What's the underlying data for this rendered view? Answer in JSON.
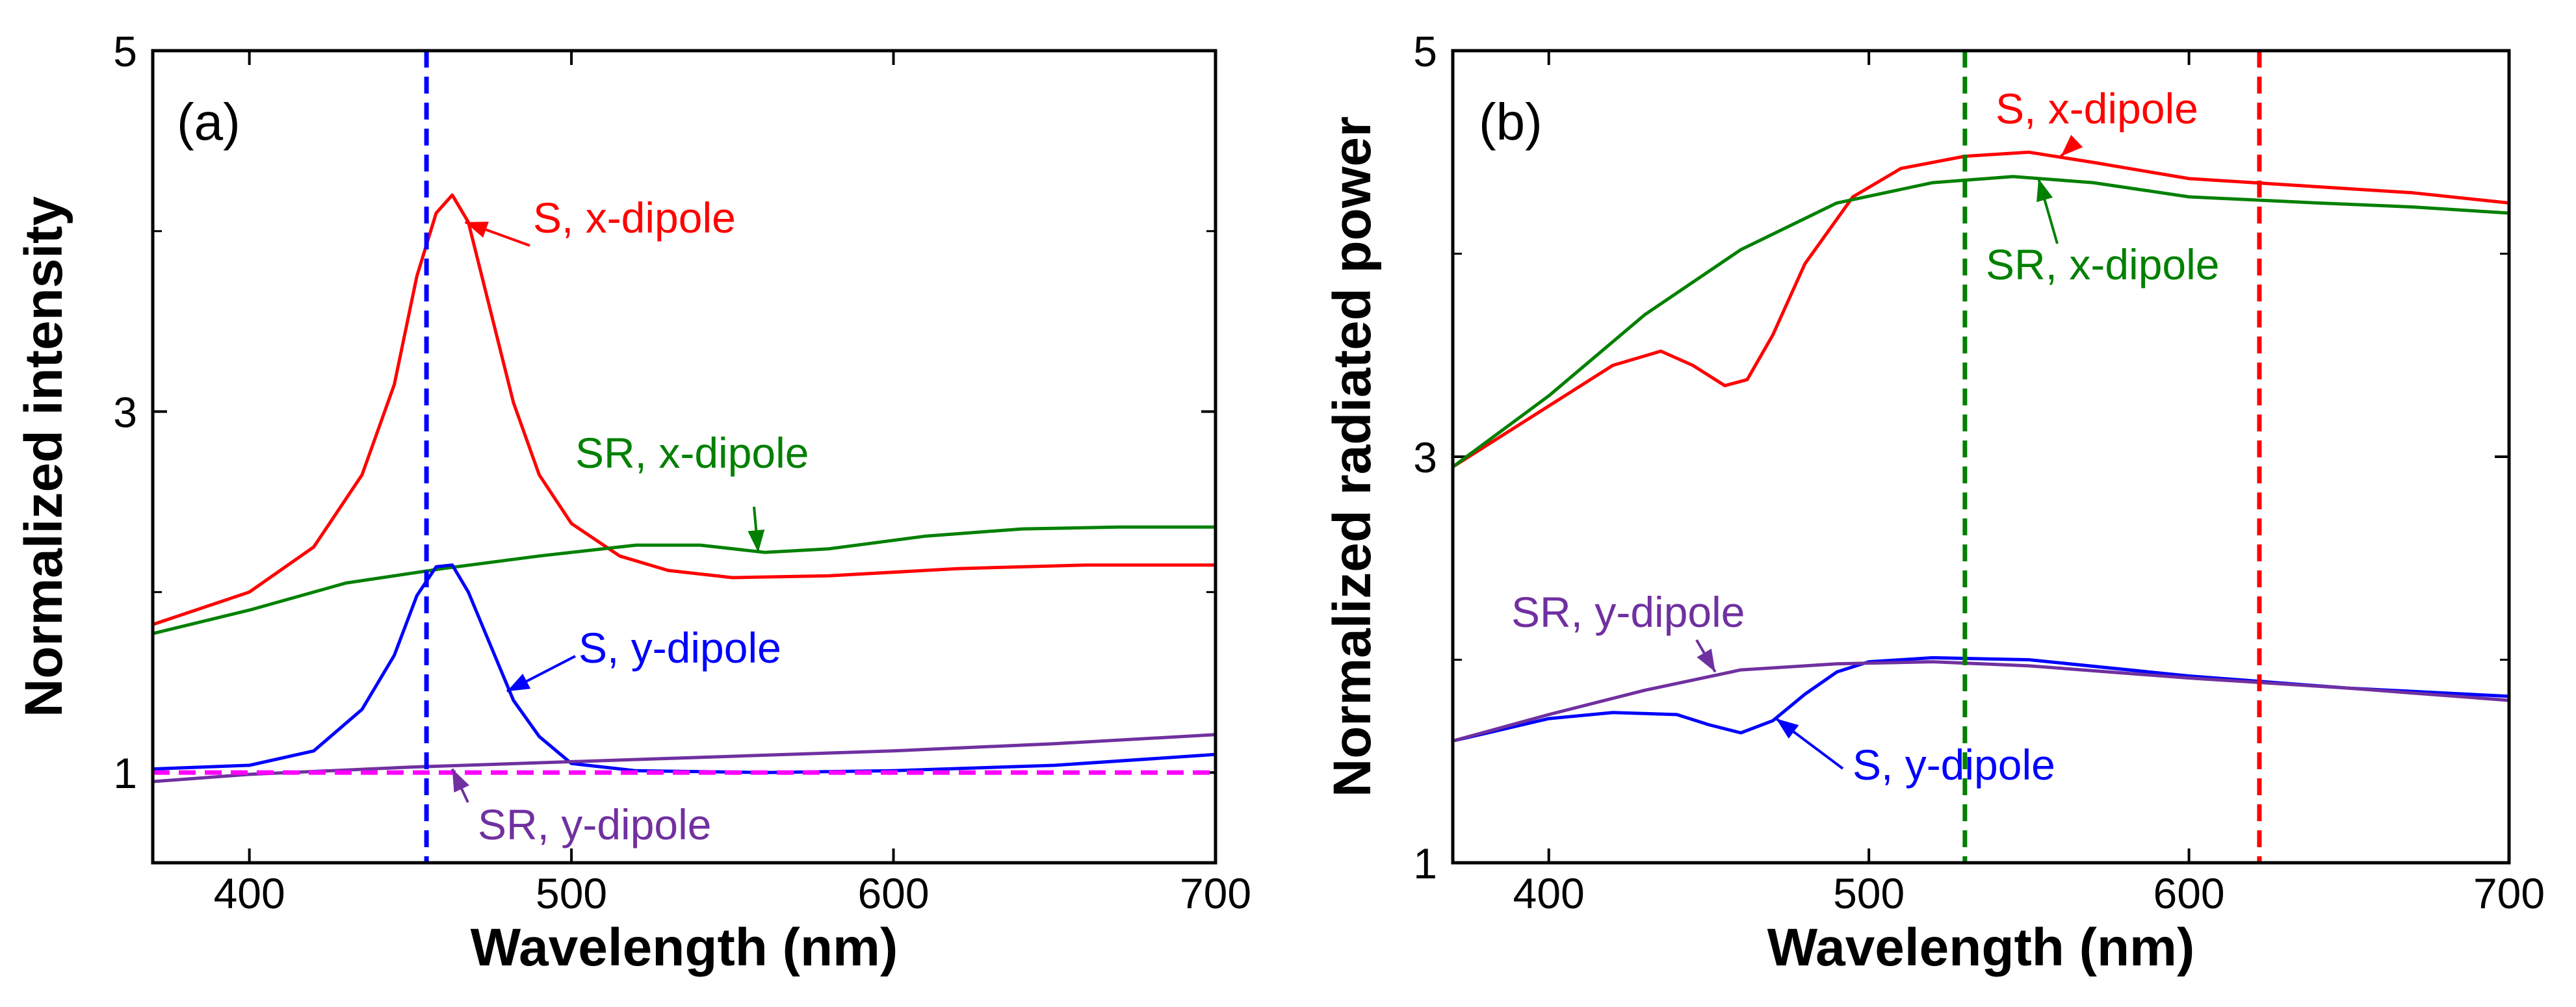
{
  "chart_data": [
    {
      "id": "a",
      "type": "line",
      "panel_label": "(a)",
      "xlabel": "Wavelength (nm)",
      "ylabel": "Normalized intensity",
      "xlim": [
        370,
        700
      ],
      "ylim": [
        0.5,
        5
      ],
      "xticks": [
        400,
        500,
        600,
        700
      ],
      "yticks": [
        1,
        3,
        5
      ],
      "series": [
        {
          "name": "S, x-dipole",
          "color": "#ff0000",
          "x": [
            370,
            400,
            420,
            435,
            445,
            452,
            458,
            463,
            468,
            475,
            482,
            490,
            500,
            515,
            530,
            550,
            580,
            620,
            660,
            700
          ],
          "y": [
            1.82,
            2.0,
            2.25,
            2.65,
            3.15,
            3.75,
            4.1,
            4.2,
            4.05,
            3.55,
            3.05,
            2.65,
            2.38,
            2.2,
            2.12,
            2.08,
            2.09,
            2.13,
            2.15,
            2.15
          ]
        },
        {
          "name": "SR, x-dipole",
          "color": "#008000",
          "x": [
            370,
            400,
            430,
            460,
            490,
            520,
            540,
            560,
            580,
            610,
            640,
            670,
            700
          ],
          "y": [
            1.77,
            1.9,
            2.05,
            2.13,
            2.2,
            2.26,
            2.26,
            2.22,
            2.24,
            2.31,
            2.35,
            2.36,
            2.36
          ]
        },
        {
          "name": "S, y-dipole",
          "color": "#0000ff",
          "x": [
            370,
            400,
            420,
            435,
            445,
            452,
            458,
            463,
            468,
            475,
            482,
            490,
            500,
            520,
            560,
            600,
            650,
            700
          ],
          "y": [
            1.02,
            1.04,
            1.12,
            1.35,
            1.65,
            1.98,
            2.14,
            2.15,
            2.0,
            1.7,
            1.4,
            1.2,
            1.05,
            1.01,
            1.0,
            1.01,
            1.04,
            1.1
          ]
        },
        {
          "name": "SR, y-dipole",
          "color": "#7030a0",
          "x": [
            370,
            400,
            450,
            500,
            550,
            600,
            650,
            700
          ],
          "y": [
            0.95,
            0.99,
            1.03,
            1.06,
            1.09,
            1.12,
            1.16,
            1.21
          ]
        }
      ],
      "reference_lines": [
        {
          "orientation": "vertical",
          "x": 455,
          "color": "#0000ff",
          "style": "dashed"
        },
        {
          "orientation": "horizontal",
          "y": 1.0,
          "color": "#ff00ff",
          "style": "dashed"
        }
      ],
      "annotations": [
        {
          "text": "S, x-dipole",
          "series": "S, x-dipole",
          "color": "#ff0000",
          "arrow_to": [
            467,
            4.05
          ]
        },
        {
          "text": "SR, x-dipole",
          "series": "SR, x-dipole",
          "color": "#008000",
          "arrow_to": [
            558,
            2.22
          ]
        },
        {
          "text": "S, y-dipole",
          "series": "S, y-dipole",
          "color": "#0000ff",
          "arrow_to": [
            480,
            1.45
          ]
        },
        {
          "text": "SR, y-dipole",
          "series": "SR, y-dipole",
          "color": "#7030a0",
          "arrow_to": [
            463,
            1.02
          ]
        }
      ]
    },
    {
      "id": "b",
      "type": "line",
      "panel_label": "(b)",
      "xlabel": "Wavelength (nm)",
      "ylabel": "Normalized radiated power",
      "xlim": [
        370,
        700
      ],
      "ylim": [
        1,
        5
      ],
      "xticks": [
        400,
        500,
        600,
        700
      ],
      "yticks": [
        1,
        3,
        5
      ],
      "series": [
        {
          "name": "S, x-dipole",
          "color": "#ff0000",
          "x": [
            370,
            400,
            420,
            435,
            445,
            455,
            462,
            470,
            480,
            495,
            510,
            530,
            550,
            570,
            600,
            640,
            670,
            700
          ],
          "y": [
            2.95,
            3.25,
            3.45,
            3.52,
            3.45,
            3.35,
            3.38,
            3.6,
            3.95,
            4.28,
            4.42,
            4.48,
            4.5,
            4.45,
            4.37,
            4.33,
            4.3,
            4.25
          ]
        },
        {
          "name": "SR, x-dipole",
          "color": "#008000",
          "x": [
            370,
            400,
            430,
            460,
            490,
            520,
            545,
            570,
            600,
            640,
            670,
            700
          ],
          "y": [
            2.95,
            3.3,
            3.7,
            4.02,
            4.25,
            4.35,
            4.38,
            4.35,
            4.28,
            4.25,
            4.23,
            4.2
          ]
        },
        {
          "name": "S, y-dipole",
          "color": "#0000ff",
          "x": [
            370,
            400,
            420,
            440,
            450,
            460,
            470,
            480,
            490,
            500,
            520,
            550,
            600,
            650,
            700
          ],
          "y": [
            1.6,
            1.71,
            1.74,
            1.73,
            1.68,
            1.64,
            1.7,
            1.83,
            1.94,
            1.99,
            2.01,
            2.0,
            1.92,
            1.86,
            1.82
          ]
        },
        {
          "name": "SR, y-dipole",
          "color": "#7030a0",
          "x": [
            370,
            400,
            430,
            460,
            490,
            520,
            550,
            600,
            650,
            700
          ],
          "y": [
            1.6,
            1.73,
            1.85,
            1.95,
            1.98,
            1.99,
            1.97,
            1.91,
            1.86,
            1.8
          ]
        }
      ],
      "reference_lines": [
        {
          "orientation": "vertical",
          "x": 530,
          "color": "#008000",
          "style": "dashed"
        },
        {
          "orientation": "vertical",
          "x": 622,
          "color": "#ff0000",
          "style": "dashed"
        }
      ],
      "annotations": [
        {
          "text": "S, x-dipole",
          "series": "S, x-dipole",
          "color": "#ff0000",
          "arrow_to": [
            560,
            4.48
          ]
        },
        {
          "text": "SR, x-dipole",
          "series": "SR, x-dipole",
          "color": "#008000",
          "arrow_to": [
            553,
            4.37
          ]
        },
        {
          "text": "SR, y-dipole",
          "series": "SR, y-dipole",
          "color": "#7030a0",
          "arrow_to": [
            452,
            1.94
          ]
        },
        {
          "text": "S, y-dipole",
          "series": "S, y-dipole",
          "color": "#0000ff",
          "arrow_to": [
            471,
            1.71
          ]
        }
      ]
    }
  ]
}
